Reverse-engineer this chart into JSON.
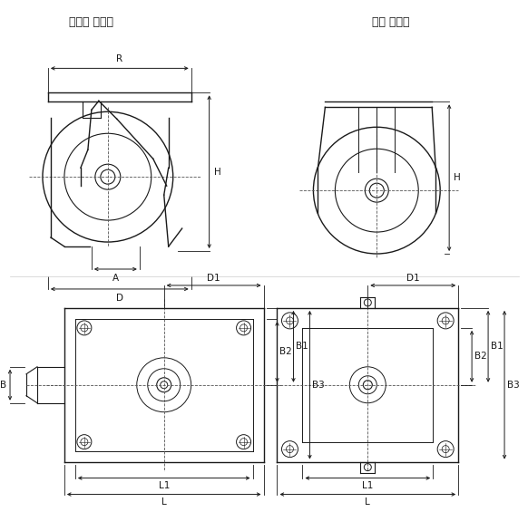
{
  "title_swivel": "스위벨 캐스터",
  "title_fixed": "고정 캐스터",
  "bg_color": "#ffffff",
  "line_color": "#1a1a1a",
  "dim_color": "#1a1a1a",
  "dash_color": "#555555",
  "font_size_title": 9,
  "font_size_label": 7.5,
  "labels": {
    "R": "R",
    "H": "H",
    "A": "A",
    "D": "D",
    "D1": "D1",
    "B": "B",
    "B1": "B1",
    "B2": "B2",
    "B3": "B3",
    "L": "L",
    "L1": "L1"
  }
}
